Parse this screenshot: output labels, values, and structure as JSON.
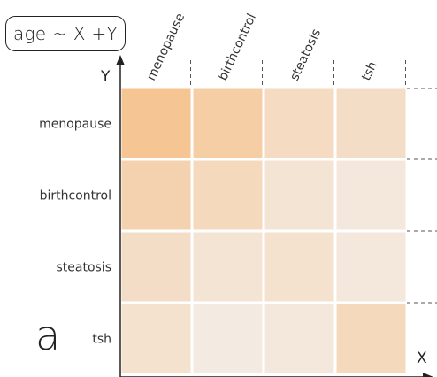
{
  "formula": "age ~ X +Y",
  "panel_label": "a",
  "chart_data": {
    "type": "heatmap",
    "title": "age ~ X +Y",
    "x_axis_label": "X",
    "y_axis_label": "Y",
    "x_categories": [
      "menopause",
      "birthcontrol",
      "steatosis",
      "tsh"
    ],
    "y_categories": [
      "menopause",
      "birthcontrol",
      "steatosis",
      "tsh"
    ],
    "values": [
      [
        1.0,
        0.8,
        0.5,
        0.45
      ],
      [
        0.7,
        0.55,
        0.3,
        0.2
      ],
      [
        0.45,
        0.3,
        0.35,
        0.22
      ],
      [
        0.35,
        0.15,
        0.2,
        0.55
      ]
    ],
    "value_range": [
      0,
      1
    ],
    "color_low": "#f3f1ef",
    "color_high": "#f6c594",
    "grid": false,
    "legend": "none"
  }
}
